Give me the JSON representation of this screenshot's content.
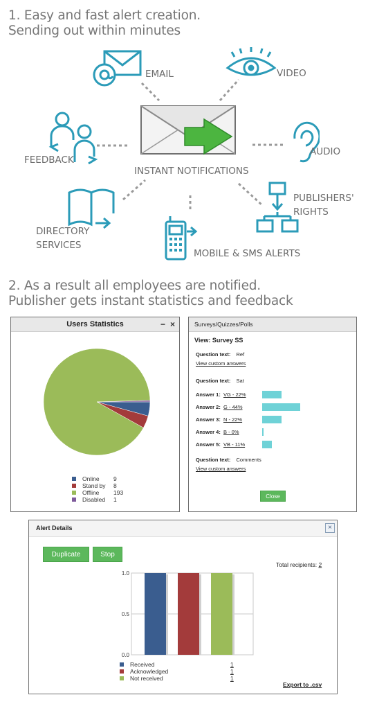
{
  "section1": {
    "line1": "1. Easy and fast alert creation.",
    "line2": "Sending out within minutes"
  },
  "diagram": {
    "center_label": "INSTANT NOTIFICATIONS",
    "icon_color": "#2b9bb8",
    "labels": {
      "email": "EMAIL",
      "video": "VIDEO",
      "feedback": "FEEDBACK",
      "audio": "AUDIO",
      "directory_line1": "DIRECTORY",
      "directory_line2": "SERVICES",
      "publishers_line1": "PUBLISHERS'",
      "publishers_line2": "RIGHTS",
      "mobile": "MOBILE & SMS ALERTS"
    }
  },
  "section2": {
    "line1": "2. As a result all employees are notified.",
    "line2": "Publisher gets instant statistics and feedback"
  },
  "users_statistics": {
    "title": "Users Statistics",
    "minimize": "−",
    "close": "×",
    "legend": [
      {
        "label": "Online",
        "value": "9",
        "color": "#3a5d8f"
      },
      {
        "label": "Stand by",
        "value": "8",
        "color": "#a33b3b"
      },
      {
        "label": "Offline",
        "value": "193",
        "color": "#9bbb59"
      },
      {
        "label": "Disabled",
        "value": "1",
        "color": "#7e5a9b"
      }
    ],
    "chart_data": {
      "type": "pie",
      "categories": [
        "Online",
        "Stand by",
        "Offline",
        "Disabled"
      ],
      "values": [
        9,
        8,
        193,
        1
      ],
      "colors": [
        "#3a5d8f",
        "#a33b3b",
        "#9bbb59",
        "#7e5a9b"
      ],
      "title": "",
      "legend_position": "bottom"
    }
  },
  "survey": {
    "header": "Surveys/Quizzes/Polls",
    "view_title": "View: Survey SS",
    "q1_label": "Question text:",
    "q1_value": "Ref",
    "q1_link": "View custom answers",
    "q2_label": "Question text:",
    "q2_value": "Sat",
    "answers": [
      {
        "key": "Answer 1:",
        "text": "VG - 22%",
        "percent": 22
      },
      {
        "key": "Answer 2:",
        "text": "G - 44%",
        "percent": 44
      },
      {
        "key": "Answer 3:",
        "text": "N - 22%",
        "percent": 22
      },
      {
        "key": "Answer 4:",
        "text": "B - 0%",
        "percent": 0
      },
      {
        "key": "Answer 5:",
        "text": "VB - 11%",
        "percent": 11
      }
    ],
    "q3_label": "Question text:",
    "q3_value": "Comments",
    "q3_link": "View custom answers",
    "close_label": "Close",
    "bar_color": "#6fd2d7"
  },
  "alert_details": {
    "title": "Alert Details",
    "close": "×",
    "duplicate_label": "Duplicate",
    "stop_label": "Stop",
    "total_label": "Total recipients:",
    "total_value": "2",
    "legend": [
      {
        "label": "Received",
        "value": "1",
        "color": "#3a5d8f"
      },
      {
        "label": "Acknowledged",
        "value": "1",
        "color": "#a33b3b"
      },
      {
        "label": "Not received",
        "value": "1",
        "color": "#9bbb59"
      }
    ],
    "export_label": "Export to .csv",
    "chart_data": {
      "type": "bar",
      "categories": [
        "Received",
        "Acknowledged",
        "Not received"
      ],
      "values": [
        1.0,
        1.0,
        1.0
      ],
      "colors": [
        "#3a5d8f",
        "#a33b3b",
        "#9bbb59"
      ],
      "ylim": [
        0,
        1
      ],
      "yticks": [
        "1.0",
        "0.5",
        "0.0"
      ],
      "grid": true,
      "title": "",
      "xlabel": "",
      "ylabel": ""
    }
  }
}
